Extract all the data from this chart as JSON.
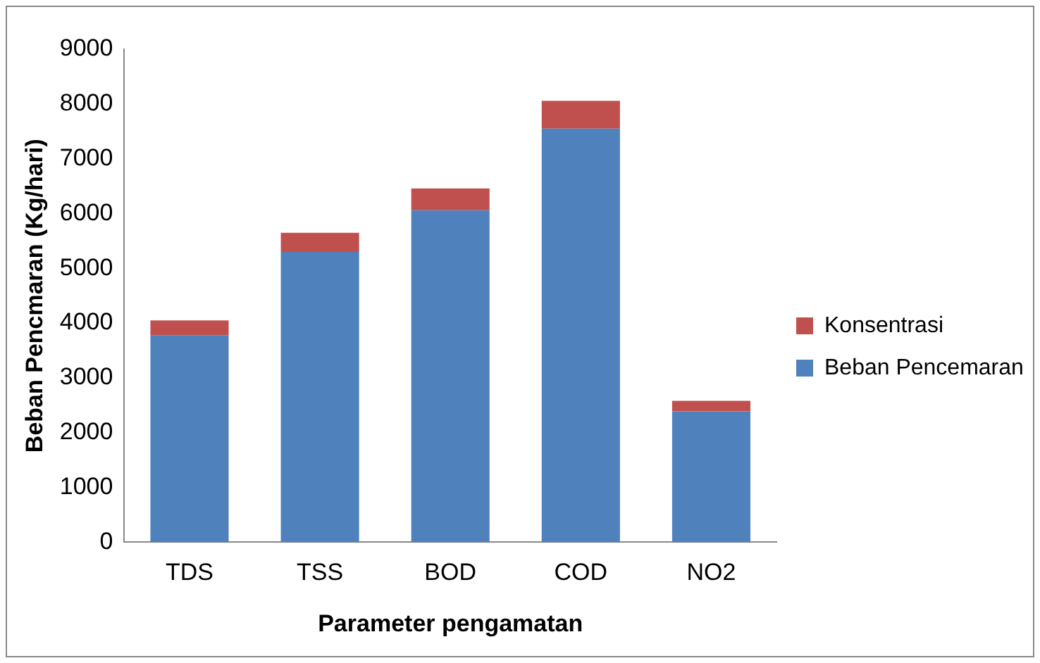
{
  "chart_data": {
    "type": "bar",
    "stacked": true,
    "xlabel": "Parameter pengamatan",
    "ylabel": "Beban Pencmaran (Kg/hari)",
    "categories": [
      "TDS",
      "TSS",
      "BOD",
      "COD",
      "NO2"
    ],
    "series": [
      {
        "name": "Beban Pencemaran",
        "color": "#4f81bd",
        "values": [
          3780,
          5300,
          6060,
          7550,
          2390
        ]
      },
      {
        "name": "Konsentrasi",
        "color": "#c0504d",
        "values": [
          270,
          350,
          400,
          510,
          190
        ]
      }
    ],
    "ylim": [
      0,
      9000
    ],
    "yticks": [
      0,
      1000,
      2000,
      3000,
      4000,
      5000,
      6000,
      7000,
      8000,
      9000
    ],
    "grid": false,
    "legend": "right"
  }
}
